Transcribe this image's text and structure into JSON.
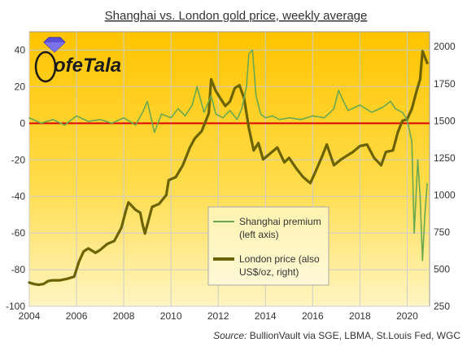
{
  "chart_data": {
    "type": "line",
    "title": "Shanghai vs. London gold price, weekly average",
    "source_label": "Source:",
    "source_text": "BullionVault via SGE, LBMA, St.Louis Fed, WGC",
    "logo_text": "ofeTala",
    "grid": true,
    "legend_placement": "bottom-center",
    "legend": [
      {
        "line1": "Shanghai premium",
        "line2": "(left axis)",
        "color": "#6aa84f"
      },
      {
        "line1": "London price (also",
        "line2": "US$/oz, right)",
        "color": "#6b6200"
      }
    ],
    "x_ticks": [
      "2004",
      "2006",
      "2008",
      "2010",
      "2012",
      "2014",
      "2016",
      "2018",
      "2020"
    ],
    "x_range": [
      2004,
      2020.95
    ],
    "y_left_ticks": [
      "40",
      "20",
      "0",
      "-20",
      "-40",
      "-60",
      "-80",
      "-100"
    ],
    "y_left_range": [
      -100,
      50
    ],
    "y_right_ticks": [
      "2000",
      "1750",
      "1500",
      "1250",
      "1000",
      "750",
      "500",
      "250"
    ],
    "y_right_range": [
      250,
      2100
    ],
    "zero_line_color": "#e00000",
    "series": [
      {
        "name": "London price (also US$/oz, right)",
        "axis": "right",
        "x": [
          2004.0,
          2004.2,
          2004.4,
          2004.6,
          2004.8,
          2005.0,
          2005.3,
          2005.6,
          2005.9,
          2006.1,
          2006.3,
          2006.5,
          2006.8,
          2007.0,
          2007.3,
          2007.6,
          2007.9,
          2008.1,
          2008.2,
          2008.5,
          2008.7,
          2008.8,
          2008.9,
          2009.2,
          2009.5,
          2009.8,
          2009.9,
          2010.2,
          2010.5,
          2010.8,
          2011.0,
          2011.3,
          2011.6,
          2011.7,
          2011.9,
          2012.1,
          2012.3,
          2012.5,
          2012.7,
          2012.9,
          2013.1,
          2013.3,
          2013.5,
          2013.7,
          2013.9,
          2014.2,
          2014.5,
          2014.8,
          2015.0,
          2015.3,
          2015.6,
          2015.9,
          2016.1,
          2016.4,
          2016.6,
          2016.9,
          2017.2,
          2017.5,
          2017.7,
          2018.0,
          2018.3,
          2018.6,
          2018.9,
          2019.1,
          2019.4,
          2019.6,
          2019.8,
          2020.0,
          2020.2,
          2020.4,
          2020.55,
          2020.65,
          2020.75,
          2020.85
        ],
        "y": [
          410,
          400,
          395,
          400,
          420,
          425,
          425,
          435,
          450,
          550,
          620,
          640,
          610,
          630,
          670,
          690,
          780,
          900,
          950,
          900,
          880,
          800,
          740,
          920,
          940,
          1000,
          1100,
          1120,
          1200,
          1320,
          1380,
          1430,
          1550,
          1780,
          1700,
          1650,
          1600,
          1630,
          1720,
          1740,
          1650,
          1450,
          1300,
          1350,
          1240,
          1280,
          1320,
          1220,
          1250,
          1180,
          1120,
          1080,
          1150,
          1260,
          1340,
          1200,
          1240,
          1270,
          1290,
          1330,
          1340,
          1250,
          1200,
          1290,
          1300,
          1420,
          1500,
          1510,
          1580,
          1700,
          1780,
          1970,
          1930,
          1890
        ]
      },
      {
        "name": "Shanghai premium (left axis)",
        "axis": "left",
        "x": [
          2004.0,
          2004.5,
          2005.0,
          2005.5,
          2006.0,
          2006.5,
          2007.0,
          2007.5,
          2008.0,
          2008.5,
          2008.8,
          2009.0,
          2009.3,
          2009.6,
          2010.0,
          2010.3,
          2010.6,
          2010.9,
          2011.1,
          2011.4,
          2011.7,
          2011.9,
          2012.2,
          2012.5,
          2012.8,
          2013.0,
          2013.2,
          2013.3,
          2013.45,
          2013.6,
          2013.8,
          2014.0,
          2014.3,
          2014.6,
          2015.0,
          2015.5,
          2016.0,
          2016.5,
          2016.9,
          2017.1,
          2017.3,
          2017.5,
          2018.0,
          2018.5,
          2019.0,
          2019.3,
          2019.5,
          2019.8,
          2020.0,
          2020.2,
          2020.3,
          2020.45,
          2020.55,
          2020.65,
          2020.75,
          2020.85
        ],
        "y": [
          3,
          0,
          2,
          -1,
          4,
          1,
          2,
          0,
          3,
          -1,
          6,
          12,
          -5,
          5,
          3,
          8,
          4,
          10,
          20,
          6,
          15,
          5,
          3,
          7,
          2,
          8,
          20,
          38,
          40,
          15,
          5,
          3,
          4,
          2,
          3,
          2,
          4,
          3,
          8,
          18,
          12,
          7,
          10,
          6,
          9,
          12,
          8,
          6,
          2,
          -10,
          -60,
          -20,
          -40,
          -75,
          -50,
          -33
        ]
      }
    ]
  }
}
